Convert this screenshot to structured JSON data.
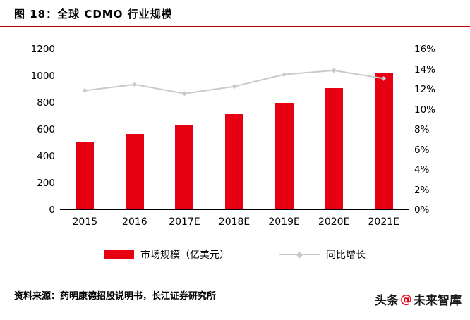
{
  "header": {
    "figure_label": "图 18：全球 CDMO 行业规模"
  },
  "chart_data": {
    "type": "bar",
    "title": "全球 CDMO 行业规模",
    "categories": [
      "2015",
      "2016",
      "2017E",
      "2018E",
      "2019E",
      "2020E",
      "2021E"
    ],
    "series": [
      {
        "name": "市场规模（亿美元）",
        "type": "bar",
        "axis": "left",
        "color": "#e60012",
        "values": [
          500,
          563,
          625,
          710,
          795,
          910,
          1025
        ]
      },
      {
        "name": "同比增长",
        "type": "line",
        "axis": "right",
        "color": "#c9c9c9",
        "values": [
          11.9,
          12.5,
          11.6,
          12.3,
          13.5,
          13.9,
          13.1
        ]
      }
    ],
    "left_axis": {
      "min": 0,
      "max": 1200,
      "step": 200,
      "ticks": [
        "0",
        "200",
        "400",
        "600",
        "800",
        "1000",
        "1200"
      ]
    },
    "right_axis": {
      "min": 0,
      "max": 16,
      "step": 2,
      "ticks": [
        "0%",
        "2%",
        "4%",
        "6%",
        "8%",
        "10%",
        "12%",
        "14%",
        "16%"
      ]
    },
    "grid": false,
    "legend_position": "bottom"
  },
  "legend": [
    {
      "label": "市场规模（亿美元）",
      "swatch": "bar"
    },
    {
      "label": "同比增长",
      "swatch": "line"
    }
  ],
  "footer": {
    "source": "资料来源：药明康德招股说明书，长江证券研究所"
  },
  "watermark": {
    "text_left": "头条",
    "separator": "@",
    "text_right": "未来智库"
  },
  "colors": {
    "bar_red": "#e60012",
    "line_gray": "#c9c9c9",
    "title_rule_red": "#c00000",
    "axis_black": "#000000"
  }
}
